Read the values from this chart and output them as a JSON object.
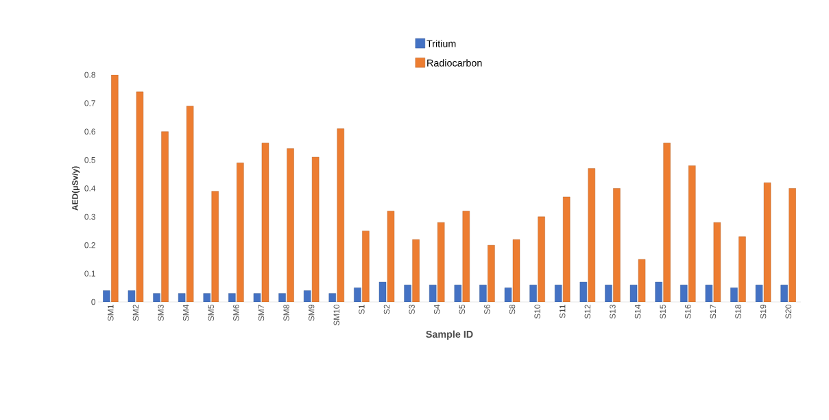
{
  "chart_data": {
    "type": "bar",
    "xlabel": "Sample ID",
    "ylabel": "AED(μSv/y)",
    "categories": [
      "SM1",
      "SM2",
      "SM3",
      "SM4",
      "SM5",
      "SM6",
      "SM7",
      "SM8",
      "SM9",
      "SM10",
      "S1",
      "S2",
      "S3",
      "S4",
      "S5",
      "S6",
      "S8",
      "S10",
      "S11",
      "S12",
      "S13",
      "S14",
      "S15",
      "S16",
      "S17",
      "S18",
      "S19",
      "S20"
    ],
    "series": [
      {
        "name": "Tritium",
        "color": "#4472c4",
        "values": [
          0.04,
          0.04,
          0.03,
          0.03,
          0.03,
          0.03,
          0.03,
          0.03,
          0.04,
          0.03,
          0.05,
          0.07,
          0.06,
          0.06,
          0.06,
          0.06,
          0.05,
          0.06,
          0.06,
          0.07,
          0.06,
          0.06,
          0.07,
          0.06,
          0.06,
          0.05,
          0.06,
          0.06
        ]
      },
      {
        "name": "Radiocarbon",
        "color": "#ed7d31",
        "values": [
          0.8,
          0.74,
          0.6,
          0.69,
          0.39,
          0.49,
          0.56,
          0.54,
          0.51,
          0.61,
          0.25,
          0.32,
          0.22,
          0.28,
          0.32,
          0.2,
          0.22,
          0.3,
          0.37,
          0.47,
          0.4,
          0.15,
          0.56,
          0.48,
          0.28,
          0.23,
          0.42,
          0.4
        ]
      }
    ],
    "ylim": [
      0,
      0.8
    ],
    "yticks": [
      0,
      0.1,
      0.2,
      0.3,
      0.4,
      0.5,
      0.6,
      0.7,
      0.8
    ],
    "grid": false,
    "legend": "top"
  }
}
